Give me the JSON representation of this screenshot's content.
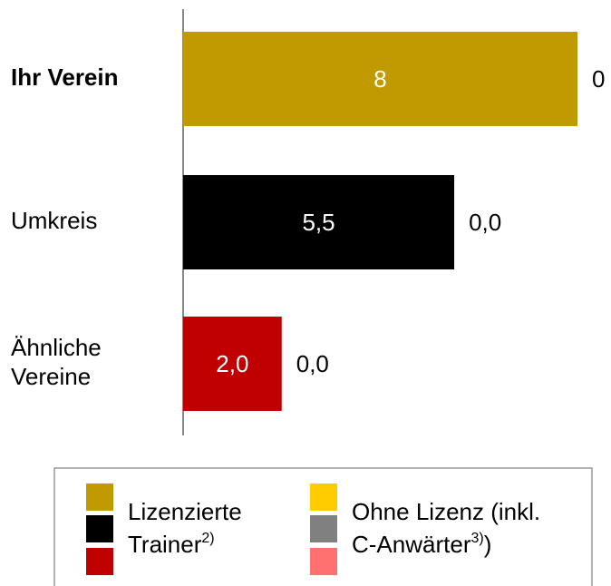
{
  "chart_data": {
    "type": "stacked-barh",
    "categories": [
      [
        "Ihr Verein"
      ],
      [
        "Umkreis"
      ],
      [
        "Ähnliche",
        "Vereine"
      ]
    ],
    "highlight": 0,
    "xlim": [
      0,
      8
    ],
    "series": [
      {
        "name": [
          [
            {
              "text": "Lizenzierte"
            }
          ],
          [
            {
              "text": "Trainer"
            },
            {
              "text": "2)",
              "sup": true
            }
          ]
        ],
        "colors": [
          "#c09a00",
          "#000000",
          "#c00000"
        ],
        "values": [
          8,
          5.5,
          2.0
        ],
        "value_labels": [
          "8",
          "5,5",
          "2,0"
        ]
      },
      {
        "name": [
          [
            {
              "text": "Ohne Lizenz (inkl."
            }
          ],
          [
            {
              "text": "C-Anwärter"
            },
            {
              "text": "3)",
              "sup": true
            },
            {
              "text": ")"
            }
          ]
        ],
        "colors": [
          "#ffcc00",
          "#808080",
          "#ff7070"
        ],
        "values": [
          0,
          0,
          0
        ],
        "value_labels": [
          "0",
          "0,0",
          "0,0"
        ]
      }
    ]
  }
}
